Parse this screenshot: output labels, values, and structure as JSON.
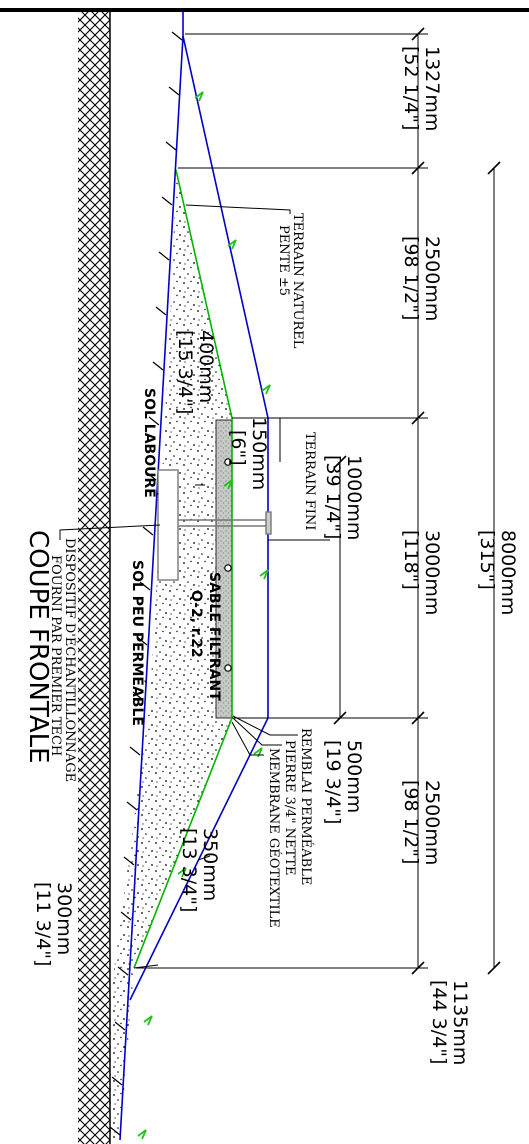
{
  "labels": {
    "terrain_naturel": "TERRAIN NATUREL",
    "pente": "PENTE ±5",
    "terrain_fini": "TERRAIN FINI",
    "remblai": "REMBLAI PERMÉABLE",
    "pierre": "PIERRE 3/4\" NETTE",
    "membrane": "MEMBRANE GÉOTEXTILE",
    "dispositif_1": "DISPOSITIF D'ÉCHANTILLONNAGE",
    "dispositif_2": "FOURNI PAR PREMIER TECH",
    "sol_laboure": "SOL LABOURÉ",
    "sol_peu_permeable": "SOL PEU PERMÉABLE",
    "sable_1": "SABLE FILTRANT",
    "sable_2": "Q-2, r.22",
    "coupe_frontale": "COUPE FRONTALE"
  },
  "dimensions": {
    "d1327_mm": "1327mm",
    "d1327_in": "[52 1/4\"]",
    "d2500a_mm": "2500mm",
    "d2500a_in": "[98 1/2\"]",
    "d3000_mm": "3000mm",
    "d3000_in": "[118\"]",
    "d8000_mm": "8000mm",
    "d8000_in": "[315\"]",
    "d2500b_mm": "2500mm",
    "d2500b_in": "[98 1/2\"]",
    "d1135_mm": "1135mm",
    "d1135_in": "[44 3/4\"]",
    "d1000_mm": "1000mm",
    "d1000_in": "[39 1/4\"]",
    "d500_mm": "500mm",
    "d500_in": "[19 3/4\"]",
    "d400_mm": "400mm",
    "d400_in": "[15 3/4\"]",
    "d150_mm": "150mm",
    "d150_in": "[6\"]",
    "d350_mm": "350mm",
    "d350_in": "[13 3/4\"]",
    "d300_mm": "300mm",
    "d300_in": "[11 3/4\"]"
  },
  "colors": {
    "outline": "#0000c8",
    "membrane": "#00b400",
    "arrow": "#22c21b",
    "stone": "#b4b4b4",
    "ink": "#000000"
  }
}
